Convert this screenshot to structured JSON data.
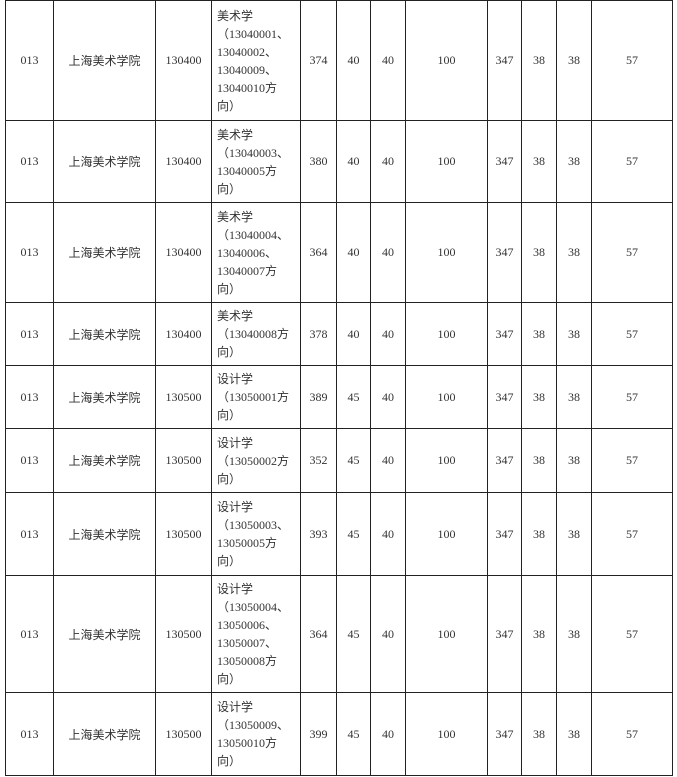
{
  "table": {
    "rows": [
      [
        "013",
        "上海美术学院",
        "130400",
        [
          "美术学",
          "（13040001、",
          "13040002、",
          "13040009、",
          "13040010方",
          "向）"
        ],
        374,
        40,
        40,
        100,
        347,
        38,
        38,
        57
      ],
      [
        "013",
        "上海美术学院",
        "130400",
        [
          "美术学",
          "（13040003、",
          "13040005方",
          "向）"
        ],
        380,
        40,
        40,
        100,
        347,
        38,
        38,
        57
      ],
      [
        "013",
        "上海美术学院",
        "130400",
        [
          "美术学",
          "（13040004、",
          "13040006、",
          "13040007方",
          "向）"
        ],
        364,
        40,
        40,
        100,
        347,
        38,
        38,
        57
      ],
      [
        "013",
        "上海美术学院",
        "130400",
        [
          "美术学",
          "（13040008方",
          "向）"
        ],
        378,
        40,
        40,
        100,
        347,
        38,
        38,
        57
      ],
      [
        "013",
        "上海美术学院",
        "130500",
        [
          "设计学",
          "（13050001方",
          "向）"
        ],
        389,
        45,
        40,
        100,
        347,
        38,
        38,
        57
      ],
      [
        "013",
        "上海美术学院",
        "130500",
        [
          "设计学",
          "（13050002方",
          "向）"
        ],
        352,
        45,
        40,
        100,
        347,
        38,
        38,
        57
      ],
      [
        "013",
        "上海美术学院",
        "130500",
        [
          "设计学",
          "（13050003、",
          "13050005方",
          "向）"
        ],
        393,
        45,
        40,
        100,
        347,
        38,
        38,
        57
      ],
      [
        "013",
        "上海美术学院",
        "130500",
        [
          "设计学",
          "（13050004、",
          "13050006、",
          "13050007、",
          "13050008方",
          "向）"
        ],
        364,
        45,
        40,
        100,
        347,
        38,
        38,
        57
      ],
      [
        "013",
        "上海美术学院",
        "130500",
        [
          "设计学",
          "（13050009、",
          "13050010方",
          "向）"
        ],
        399,
        45,
        40,
        100,
        347,
        38,
        38,
        57
      ]
    ]
  }
}
